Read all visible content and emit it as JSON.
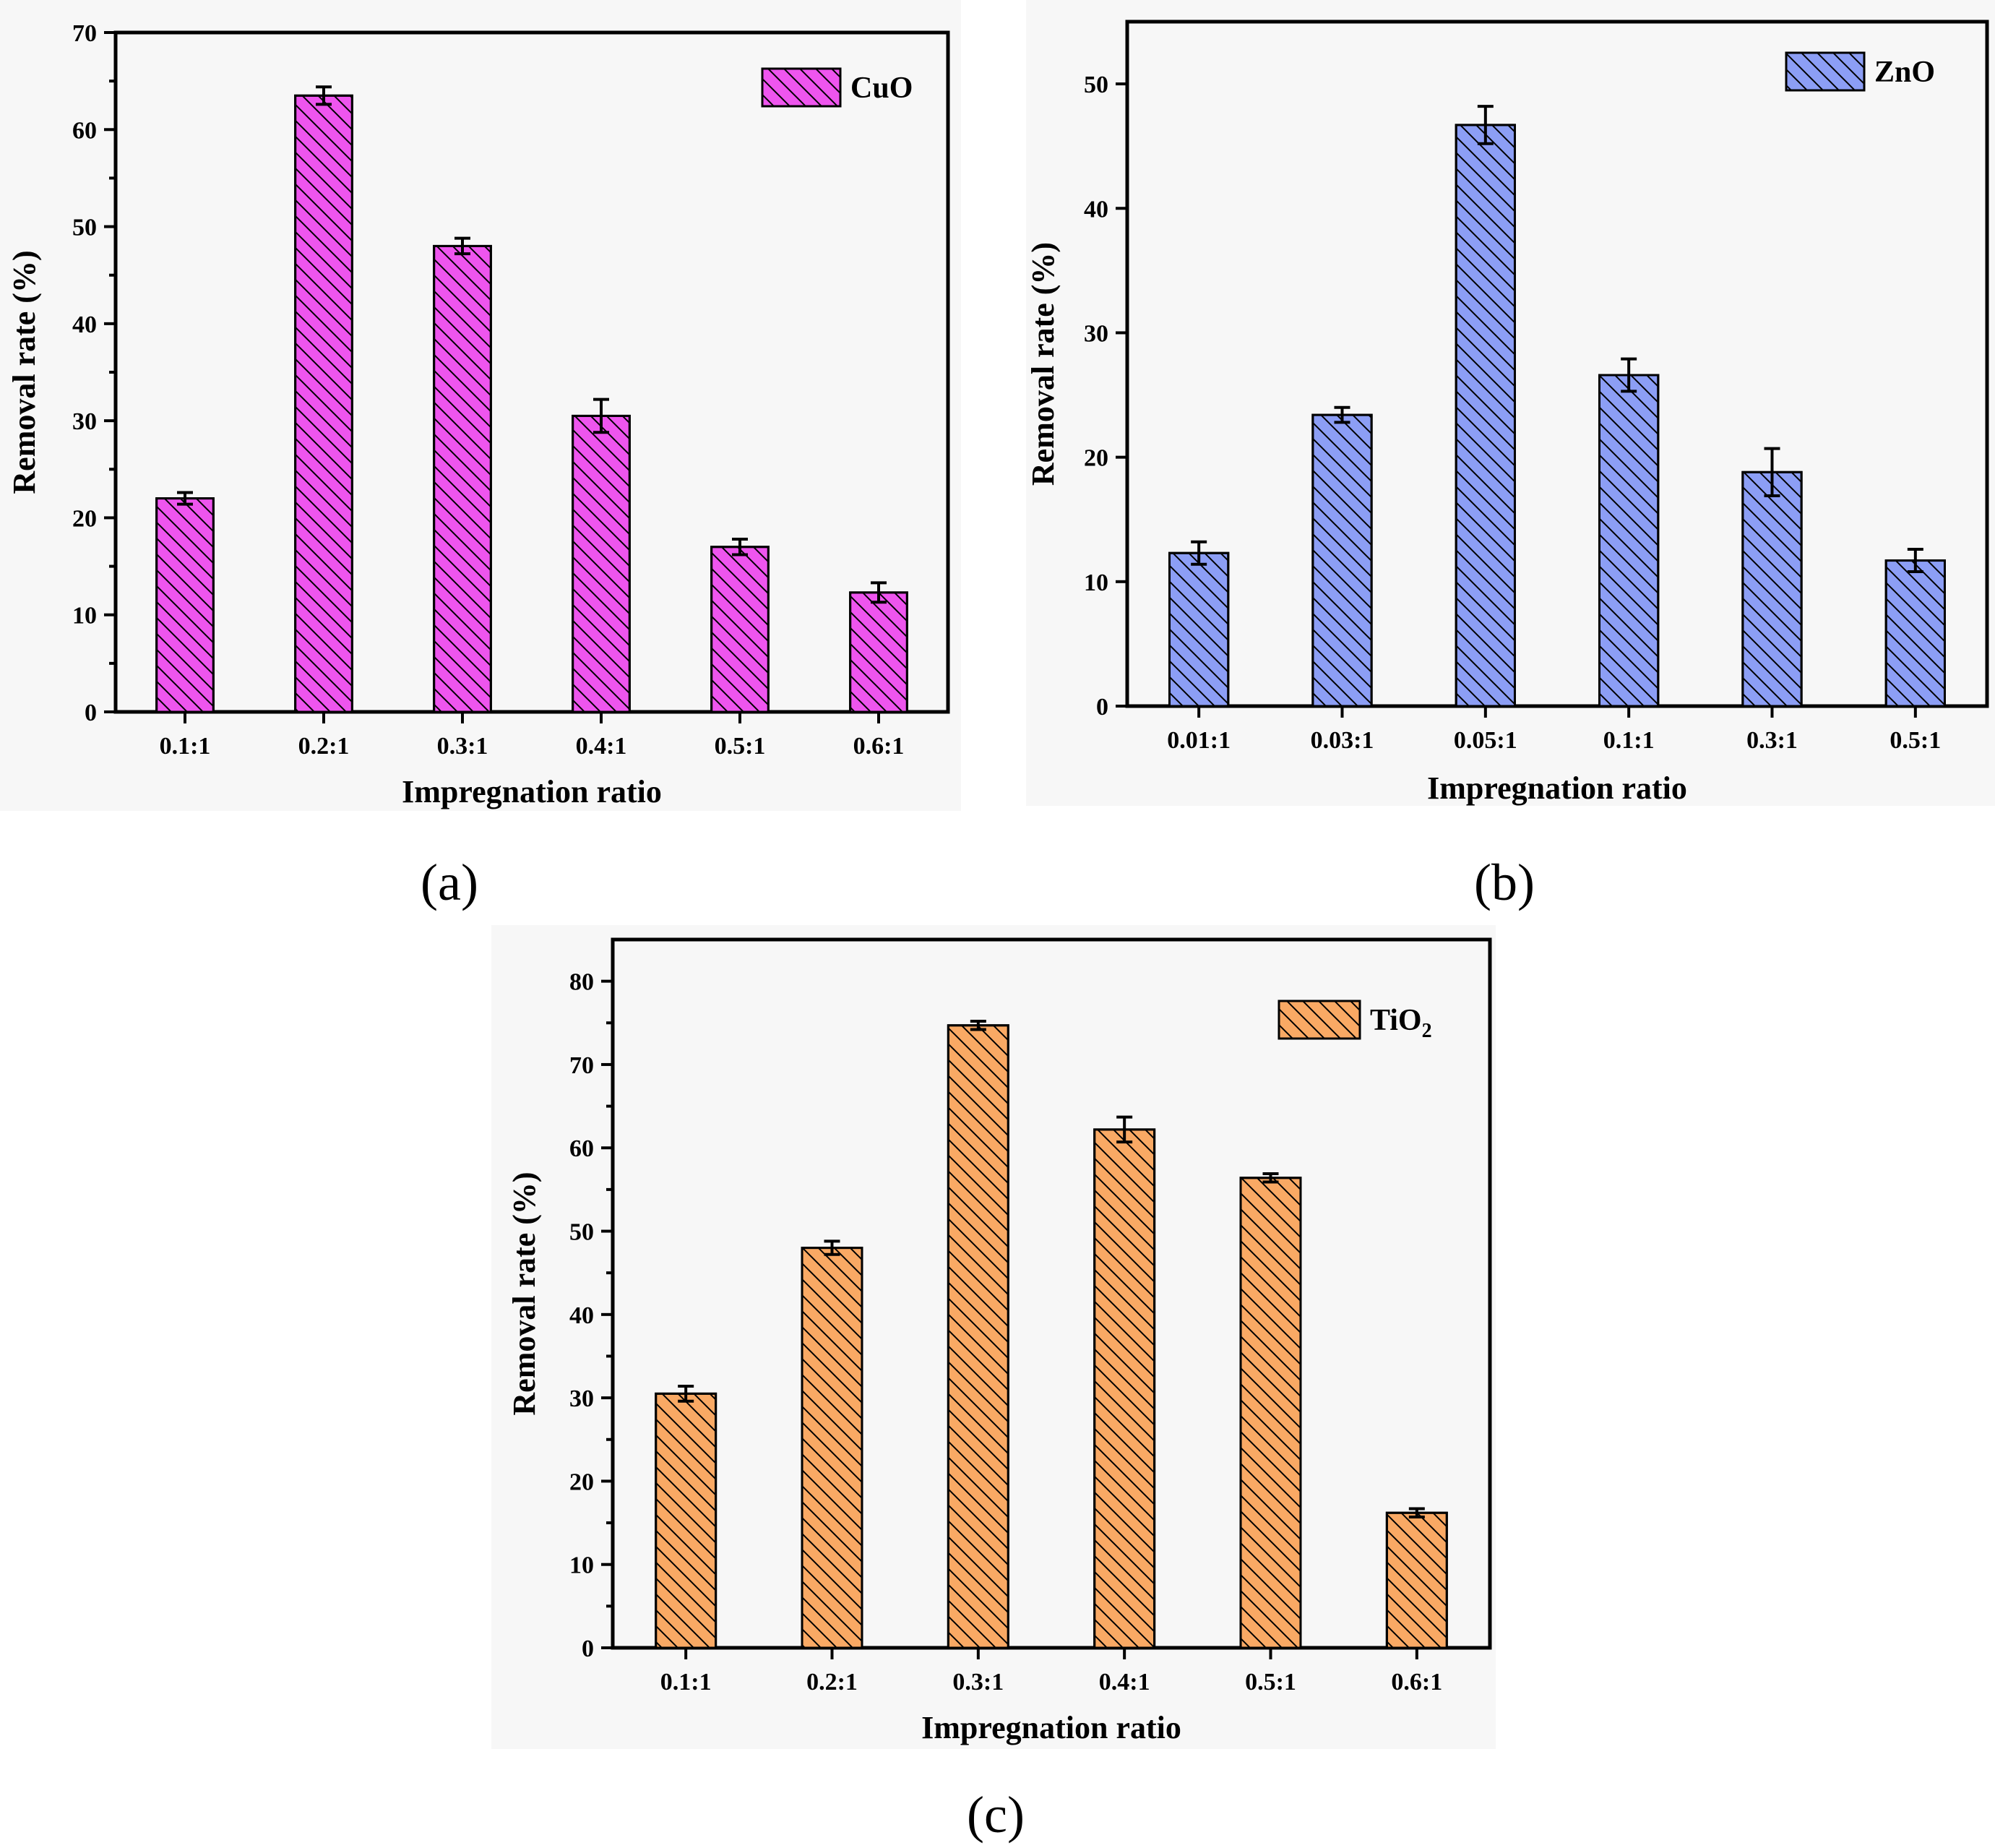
{
  "chart_data": [
    {
      "type": "bar",
      "panel": "(a)",
      "legend": "CuO",
      "legend_sub": "",
      "color": "#ee55ee",
      "categories": [
        "0.1:1",
        "0.2:1",
        "0.3:1",
        "0.4:1",
        "0.5:1",
        "0.6:1"
      ],
      "values": [
        22,
        63.5,
        48,
        30.5,
        17,
        12.3
      ],
      "errors": [
        0.6,
        0.9,
        0.8,
        1.7,
        0.8,
        1.0
      ],
      "xlabel": "Impregnation ratio",
      "ylabel": "Removal rate (%)",
      "ylim": [
        0,
        70
      ],
      "yticks": [
        0,
        10,
        20,
        30,
        40,
        50,
        60,
        70
      ]
    },
    {
      "type": "bar",
      "panel": "(b)",
      "legend": "ZnO",
      "legend_sub": "",
      "color": "#8c9ef5",
      "categories": [
        "0.01:1",
        "0.03:1",
        "0.05:1",
        "0.1:1",
        "0.3:1",
        "0.5:1"
      ],
      "values": [
        12.3,
        23.4,
        46.7,
        26.6,
        18.8,
        11.7
      ],
      "errors": [
        0.9,
        0.6,
        1.5,
        1.3,
        1.9,
        0.9
      ],
      "xlabel": "Impregnation ratio",
      "ylabel": "Removal rate (%)",
      "ylim": [
        0,
        55
      ],
      "yticks": [
        0,
        10,
        20,
        30,
        40,
        50
      ]
    },
    {
      "type": "bar",
      "panel": "(c)",
      "legend": "TiO",
      "legend_sub": "2",
      "color": "#f9a964",
      "categories": [
        "0.1:1",
        "0.2:1",
        "0.3:1",
        "0.4:1",
        "0.5:1",
        "0.6:1"
      ],
      "values": [
        30.5,
        48,
        74.7,
        62.2,
        56.4,
        16.2
      ],
      "errors": [
        0.9,
        0.8,
        0.5,
        1.5,
        0.5,
        0.5
      ],
      "xlabel": "Impregnation ratio",
      "ylabel": "Removal rate (%)",
      "ylim": [
        0,
        85
      ],
      "yticks": [
        0,
        10,
        20,
        30,
        40,
        50,
        60,
        70,
        80
      ]
    }
  ]
}
